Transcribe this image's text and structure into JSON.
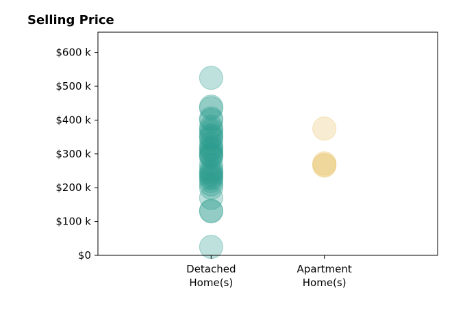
{
  "chart_data": {
    "type": "scatter",
    "title": "Selling Price",
    "xlabel": "",
    "ylabel": "",
    "categories": [
      "Detached\nHome(s)",
      "Apartment\nHome(s)"
    ],
    "x_range": [
      -1,
      2
    ],
    "ylim": [
      0,
      660
    ],
    "y_ticks": [
      0,
      100,
      200,
      300,
      400,
      500,
      600
    ],
    "y_tick_labels": [
      "$0",
      "$100 k",
      "$200 k",
      "$300 k",
      "$400 k",
      "$500 k",
      "$600 k"
    ],
    "grid": false,
    "series": [
      {
        "color": "#2a9d8f",
        "category_index": 0,
        "values": [
          25,
          130,
          132,
          170,
          200,
          210,
          220,
          228,
          232,
          238,
          242,
          248,
          255,
          268,
          290,
          295,
          298,
          302,
          310,
          315,
          320,
          330,
          345,
          350,
          355,
          365,
          372,
          380,
          400,
          405,
          435,
          440,
          525
        ]
      },
      {
        "color": "#e9c46a",
        "category_index": 1,
        "values": [
          265,
          268,
          272,
          375
        ]
      }
    ]
  }
}
